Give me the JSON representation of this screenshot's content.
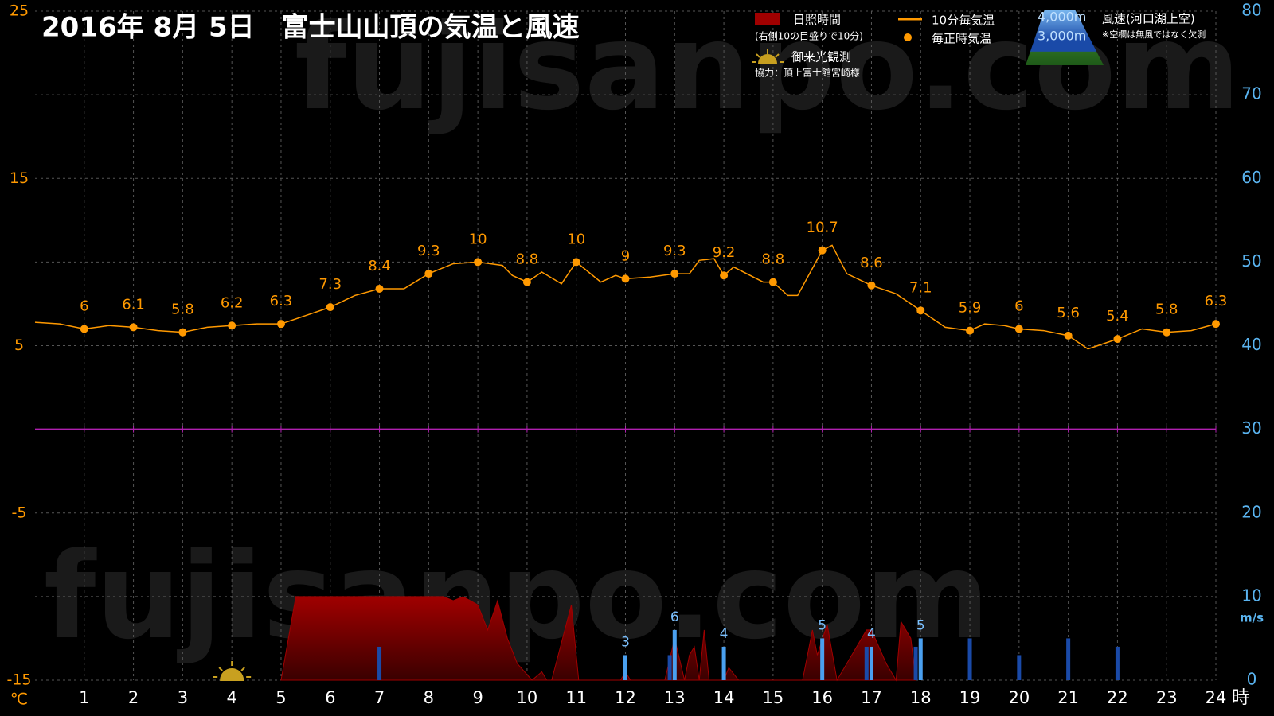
{
  "chart_data": {
    "type": "combo",
    "title": "2016年  8月  5日　富士山山頂の気温と風速",
    "watermark": "fujisanpo.com",
    "x_unit": "時",
    "y_unit": "℃",
    "y2_unit": "m/s",
    "xlim": [
      0,
      24
    ],
    "xticks": [
      1,
      2,
      3,
      4,
      5,
      6,
      7,
      8,
      9,
      10,
      11,
      12,
      13,
      14,
      15,
      16,
      17,
      18,
      19,
      20,
      21,
      22,
      23,
      24
    ],
    "ylim": [
      -15,
      25
    ],
    "yticks": [
      25,
      15,
      5,
      -5,
      -15
    ],
    "y2lim": [
      0,
      80
    ],
    "y2ticks": [
      80,
      70,
      60,
      50,
      40,
      30,
      20,
      10,
      0
    ],
    "grid": true,
    "sunshine_note": "(右側10の目盛りで10分)",
    "wind_title": "風速(河口湖上空)",
    "wind_note": "※空欄は無風ではなく欠測",
    "credit": "協力：頂上富士館宮崎様",
    "sunrise": {
      "label": "御来光観測",
      "x": 4.0
    },
    "series": [
      {
        "name": "日照時間",
        "type": "area",
        "axis": "y2",
        "color": "#a00000",
        "x": [
          5.0,
          5.3,
          8.3,
          8.5,
          8.7,
          9.0,
          9.2,
          9.4,
          9.6,
          9.8,
          10.1,
          10.3,
          10.4,
          10.5,
          10.9,
          11.05,
          11.9,
          12.0,
          12.1,
          12.8,
          13.0,
          13.2,
          13.3,
          13.4,
          13.5,
          13.6,
          13.7,
          13.8,
          14.0,
          14.1,
          14.3,
          15.6,
          15.8,
          15.9,
          16.1,
          16.3,
          16.9,
          17.0,
          17.3,
          17.5,
          17.6,
          17.8,
          17.9
        ],
        "values": [
          0,
          10,
          10,
          9.5,
          10,
          9,
          6,
          9.5,
          5,
          2,
          0,
          1,
          0,
          0,
          9,
          0,
          0,
          1,
          0,
          0,
          5,
          0,
          3,
          4,
          0,
          6,
          0,
          0,
          0,
          1.5,
          0,
          0,
          6,
          3,
          6.7,
          0,
          6,
          6,
          2,
          0,
          7,
          5,
          0
        ]
      },
      {
        "name": "10分毎気温",
        "type": "line",
        "color": "#ff9900",
        "x": [
          0,
          0.5,
          1,
          1.5,
          2,
          2.5,
          3,
          3.5,
          4,
          4.5,
          5,
          5.5,
          6,
          6.5,
          7,
          7.5,
          8,
          8.5,
          9,
          9.5,
          9.7,
          10,
          10.3,
          10.7,
          11,
          11.5,
          11.8,
          12,
          12.5,
          13,
          13.3,
          13.5,
          13.8,
          14,
          14.2,
          14.8,
          15,
          15.3,
          15.5,
          16,
          16.2,
          16.5,
          17,
          17.5,
          18,
          18.5,
          19,
          19.3,
          19.7,
          20,
          20.5,
          21,
          21.4,
          21.6,
          22,
          22.5,
          23,
          23.5,
          24
        ],
        "values": [
          6.4,
          6.3,
          6.0,
          6.2,
          6.1,
          5.9,
          5.8,
          6.1,
          6.2,
          6.3,
          6.3,
          6.8,
          7.3,
          8.0,
          8.4,
          8.4,
          9.3,
          9.9,
          10,
          9.8,
          9.2,
          8.8,
          9.4,
          8.7,
          10,
          8.8,
          9.2,
          9.0,
          9.1,
          9.3,
          9.3,
          10.1,
          10.2,
          9.2,
          9.7,
          8.8,
          8.8,
          8.0,
          8.0,
          10.7,
          11.0,
          9.3,
          8.6,
          8.1,
          7.1,
          6.1,
          5.9,
          6.3,
          6.2,
          6.0,
          5.9,
          5.6,
          4.8,
          5.0,
          5.4,
          6.0,
          5.8,
          5.9,
          6.3
        ]
      },
      {
        "name": "毎正時気温",
        "type": "scatter",
        "color": "#ff9900",
        "x": [
          1,
          2,
          3,
          4,
          5,
          6,
          7,
          8,
          9,
          10,
          11,
          12,
          13,
          14,
          15,
          16,
          17,
          18,
          19,
          20,
          21,
          22,
          23,
          24
        ],
        "values": [
          6,
          6.1,
          5.8,
          6.2,
          6.3,
          7.3,
          8.4,
          9.3,
          10,
          8.8,
          10,
          9,
          9.3,
          9.2,
          8.8,
          10.7,
          8.6,
          7.1,
          5.9,
          6,
          5.6,
          5.4,
          5.8,
          6.3
        ]
      },
      {
        "name": "4,000m",
        "type": "bar",
        "axis": "y2",
        "color": "#4aa0f0",
        "show_values": true,
        "x": [
          12,
          13,
          14,
          16,
          17,
          18
        ],
        "values": [
          3,
          6,
          4,
          5,
          4,
          5
        ]
      },
      {
        "name": "3,000m",
        "type": "bar",
        "axis": "y2",
        "color": "#1a4aa8",
        "show_values": false,
        "x": [
          7,
          12.9,
          16.9,
          17.9,
          19,
          20,
          21,
          22
        ],
        "values": [
          4,
          3,
          4,
          4,
          5,
          3,
          5,
          4
        ]
      }
    ]
  }
}
